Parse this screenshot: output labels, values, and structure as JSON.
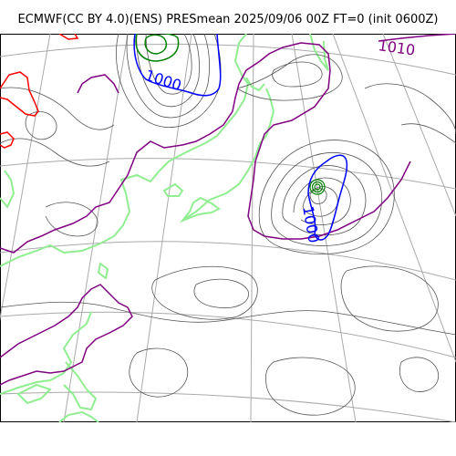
{
  "figure": {
    "title": "ECMWF(CC BY 4.0)(ENS) PRESmean 2025/09/06 00Z FT=0 (init 0600Z)"
  },
  "map": {
    "projection": "polar stereographic (curved lat/lon graticule)",
    "field": "mean sea level pressure (ensemble mean)",
    "contour_labels": [
      {
        "value": "1010",
        "color": "#800080"
      },
      {
        "value": "1000",
        "color": "#0000ff"
      },
      {
        "value": "1000",
        "color": "#0000ff"
      }
    ],
    "colors": {
      "graticule": "#aaaaaa",
      "isobar": "#555555",
      "isobar_1010": "#800080",
      "isobar_1000": "#0000ff",
      "low_center": "#008000",
      "high_isobar": "#ff0000",
      "coastline": "#90ee90"
    },
    "features": [
      "low-pressure-center-east",
      "low-pressure-center-north",
      "high-pressure-west"
    ]
  }
}
